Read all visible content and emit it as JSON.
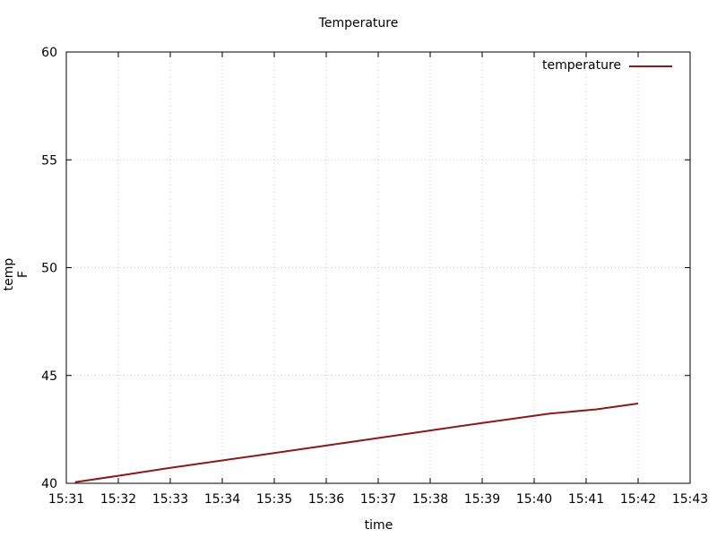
{
  "chart_data": {
    "type": "line",
    "title": "Temperature",
    "xlabel": "time",
    "ylabel": "temp F",
    "x_ticks": [
      "15:31",
      "15:32",
      "15:33",
      "15:34",
      "15:35",
      "15:36",
      "15:37",
      "15:38",
      "15:39",
      "15:40",
      "15:41",
      "15:42",
      "15:43"
    ],
    "xlim": [
      "15:31",
      "15:43"
    ],
    "ylim": [
      40,
      60
    ],
    "y_ticks": [
      40,
      45,
      50,
      55,
      60
    ],
    "grid": true,
    "legend_position": "top-right",
    "series": [
      {
        "name": "temperature",
        "color": "#8b1a1a",
        "points": [
          {
            "x": "15:31:10",
            "y": 40.05
          },
          {
            "x": "15:32:00",
            "y": 40.35
          },
          {
            "x": "15:33:00",
            "y": 40.72
          },
          {
            "x": "15:34:00",
            "y": 41.06
          },
          {
            "x": "15:35:00",
            "y": 41.4
          },
          {
            "x": "15:36:00",
            "y": 41.75
          },
          {
            "x": "15:37:00",
            "y": 42.1
          },
          {
            "x": "15:38:00",
            "y": 42.45
          },
          {
            "x": "15:39:00",
            "y": 42.8
          },
          {
            "x": "15:40:18",
            "y": 43.23
          },
          {
            "x": "15:41:12",
            "y": 43.43
          },
          {
            "x": "15:42:00",
            "y": 43.7
          }
        ]
      }
    ]
  }
}
